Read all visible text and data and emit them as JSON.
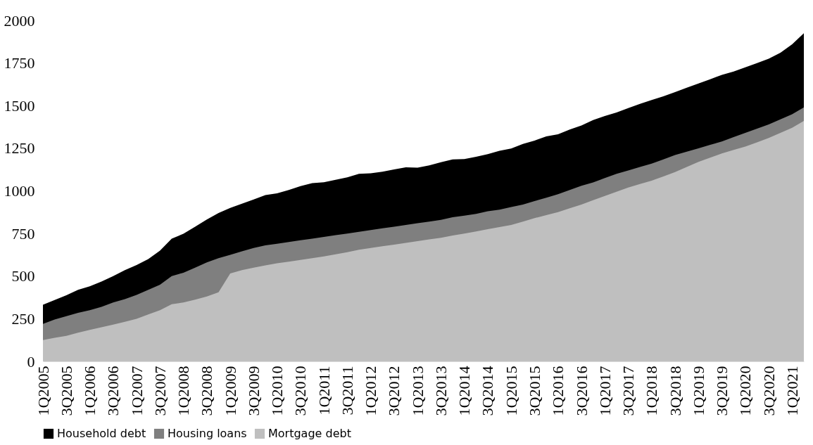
{
  "chart_data": {
    "type": "area",
    "categories": [
      "1Q2005",
      null,
      "3Q2005",
      null,
      "1Q2006",
      null,
      "3Q2006",
      null,
      "1Q2007",
      null,
      "3Q2007",
      null,
      "1Q2008",
      null,
      "3Q2008",
      null,
      "1Q2009",
      null,
      "3Q2009",
      null,
      "1Q2010",
      null,
      "3Q2010",
      null,
      "1Q2011",
      null,
      "3Q2011",
      null,
      "1Q2012",
      null,
      "3Q2012",
      null,
      "1Q2013",
      null,
      "3Q2013",
      null,
      "1Q2014",
      null,
      "3Q2014",
      null,
      "1Q2015",
      null,
      "3Q2015",
      null,
      "1Q2016",
      null,
      "3Q2016",
      null,
      "1Q2017",
      null,
      "3Q2017",
      null,
      "1Q2018",
      null,
      "3Q2018",
      null,
      "1Q2019",
      null,
      "3Q2019",
      null,
      "1Q2020",
      null,
      "3Q2020",
      null,
      "1Q2021",
      null
    ],
    "series": [
      {
        "name": "Household debt",
        "color": "#000000",
        "values": [
          332,
          360,
          388,
          420,
          440,
          468,
          500,
          535,
          565,
          600,
          650,
          720,
          748,
          790,
          832,
          870,
          900,
          925,
          949,
          975,
          986,
          1005,
          1028,
          1045,
          1051,
          1065,
          1079,
          1100,
          1103,
          1112,
          1126,
          1138,
          1136,
          1150,
          1168,
          1185,
          1187,
          1200,
          1215,
          1235,
          1248,
          1275,
          1295,
          1320,
          1332,
          1360,
          1383,
          1415,
          1439,
          1460,
          1486,
          1510,
          1533,
          1555,
          1579,
          1605,
          1630,
          1655,
          1680,
          1700,
          1725,
          1750,
          1775,
          1810,
          1860,
          1925
        ]
      },
      {
        "name": "Housing loans",
        "color": "#7f7f7f",
        "values": [
          220,
          245,
          265,
          285,
          300,
          320,
          345,
          365,
          390,
          420,
          450,
          500,
          520,
          550,
          580,
          605,
          625,
          645,
          665,
          680,
          690,
          700,
          710,
          720,
          730,
          740,
          750,
          760,
          770,
          780,
          790,
          800,
          810,
          820,
          830,
          845,
          855,
          865,
          880,
          890,
          905,
          920,
          940,
          960,
          980,
          1005,
          1030,
          1050,
          1075,
          1100,
          1120,
          1140,
          1160,
          1185,
          1210,
          1230,
          1250,
          1270,
          1290,
          1315,
          1340,
          1365,
          1390,
          1420,
          1450,
          1490
        ]
      },
      {
        "name": "Mortgage debt",
        "color": "#bfbfbf",
        "values": [
          125,
          138,
          150,
          168,
          185,
          200,
          215,
          232,
          250,
          275,
          300,
          335,
          345,
          362,
          380,
          405,
          515,
          535,
          550,
          563,
          575,
          585,
          595,
          605,
          615,
          628,
          640,
          655,
          665,
          675,
          685,
          695,
          705,
          715,
          725,
          738,
          750,
          762,
          775,
          788,
          800,
          820,
          840,
          858,
          875,
          898,
          920,
          945,
          970,
          995,
          1020,
          1040,
          1060,
          1085,
          1110,
          1140,
          1170,
          1195,
          1220,
          1240,
          1260,
          1285,
          1310,
          1340,
          1370,
          1410
        ]
      }
    ],
    "ylim": [
      0,
      2000
    ],
    "yticks": [
      0,
      250,
      500,
      750,
      1000,
      1250,
      1500,
      1750,
      2000
    ],
    "grid": false,
    "legend": "bottom"
  }
}
